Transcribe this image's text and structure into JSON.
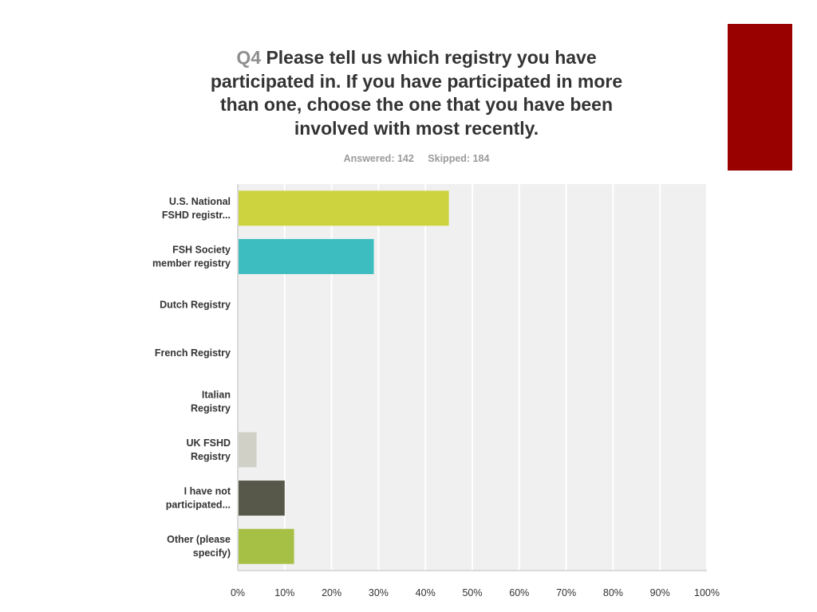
{
  "colors": {
    "accent_block": "#990000",
    "plot_background": "#f0f0f0",
    "grid": "#ffffff"
  },
  "header": {
    "question_number": "Q4",
    "question_text": "Please tell us which registry you have participated in. If you have participated in more than one, choose the one that you have been involved with most recently.",
    "answered": "Answered: 142",
    "skipped": "Skipped: 184"
  },
  "chart_data": {
    "type": "bar",
    "orientation": "horizontal",
    "categories": [
      [
        "U.S. National",
        "FSHD registr..."
      ],
      [
        "FSH Society",
        "member registry"
      ],
      [
        "Dutch Registry"
      ],
      [
        "French Registry"
      ],
      [
        "Italian",
        "Registry"
      ],
      [
        "UK FSHD",
        "Registry"
      ],
      [
        "I have not",
        "participated..."
      ],
      [
        "Other (please",
        "specify)"
      ]
    ],
    "values": [
      45,
      29,
      0,
      0,
      0,
      4,
      10,
      12
    ],
    "bar_colors": [
      "#cdd33f",
      "#3dbdbf",
      "#cdd33f",
      "#3dbdbf",
      "#3dbdbf",
      "#d0d0c6",
      "#575849",
      "#a6bf45"
    ],
    "xlim": [
      0,
      100
    ],
    "ticks": [
      "0%",
      "10%",
      "20%",
      "30%",
      "40%",
      "50%",
      "60%",
      "70%",
      "80%",
      "90%",
      "100%"
    ],
    "grid": true,
    "legend": "none"
  }
}
